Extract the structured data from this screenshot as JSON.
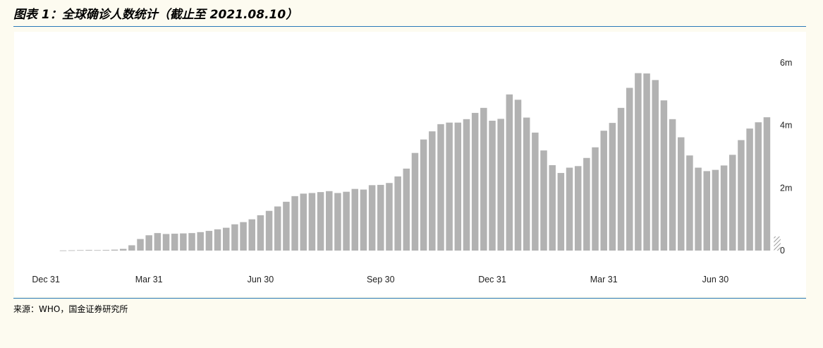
{
  "header": {
    "title": "图表 1：全球确诊人数统计（截止至 2021.08.10）"
  },
  "footer": {
    "source": "来源：WHO，国金证券研究所"
  },
  "colors": {
    "bar": "#b2b2b2",
    "axis_text": "#222222",
    "rule": "#2a7ab8",
    "background": "#fdfbf0",
    "plot_background": "#ffffff"
  },
  "chart_data": {
    "type": "bar",
    "title": "",
    "xlabel": "",
    "ylabel": "",
    "ylim": [
      0,
      6000000
    ],
    "yticks": [
      0,
      2000000,
      4000000,
      6000000
    ],
    "ytick_labels": [
      "0",
      "2m",
      "4m",
      "6m"
    ],
    "y_axis_position": "right",
    "grid": false,
    "legend": "none",
    "x_tick_labels": [
      "Dec 31",
      "Mar 31",
      "Jun 30",
      "Sep 30",
      "Dec 31",
      "Mar 31",
      "Jun 30"
    ],
    "x_tick_bar_index": [
      -2,
      10,
      23,
      37,
      50,
      63,
      76
    ],
    "values": [
      5000,
      10000,
      15000,
      20000,
      15000,
      20000,
      30000,
      55000,
      170000,
      370000,
      490000,
      560000,
      530000,
      540000,
      550000,
      560000,
      590000,
      630000,
      680000,
      730000,
      840000,
      910000,
      1000000,
      1130000,
      1270000,
      1410000,
      1560000,
      1740000,
      1820000,
      1840000,
      1870000,
      1900000,
      1840000,
      1880000,
      1970000,
      1950000,
      2090000,
      2100000,
      2160000,
      2370000,
      2620000,
      3120000,
      3550000,
      3810000,
      4040000,
      4090000,
      4090000,
      4200000,
      4400000,
      4560000,
      4150000,
      4210000,
      4990000,
      4820000,
      4250000,
      3770000,
      3200000,
      2730000,
      2480000,
      2650000,
      2700000,
      2960000,
      3300000,
      3830000,
      4080000,
      4560000,
      5200000,
      5670000,
      5660000,
      5450000,
      4800000,
      4200000,
      3620000,
      3040000,
      2650000,
      2540000,
      2580000,
      2720000,
      3060000,
      3530000,
      3900000,
      4100000,
      4260000
    ],
    "partial_last_week": {
      "pattern": "hatched",
      "value": 450000
    }
  }
}
